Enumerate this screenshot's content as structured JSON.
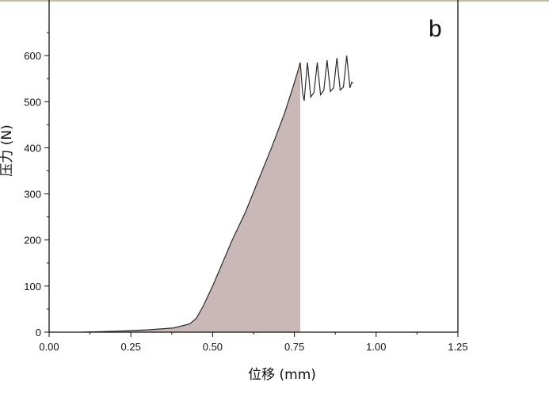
{
  "chart_data": {
    "type": "area",
    "panel_label": "b",
    "xlabel": "位移 (mm)",
    "ylabel": "压力 (N)",
    "xlim": [
      0,
      1.25
    ],
    "ylim": [
      0,
      700
    ],
    "x_ticks": [
      "0.00",
      "0.25",
      "0.50",
      "0.75",
      "1.00",
      "1.25"
    ],
    "y_ticks": [
      "0",
      "100",
      "200",
      "300",
      "400",
      "500",
      "600"
    ],
    "grid": false,
    "colors": {
      "line": "#2a2a2a",
      "fill": "#c9b8b7",
      "axis": "#111111",
      "top_rule": "#8a7a3a"
    },
    "series": [
      {
        "x": [
          0.1,
          0.2,
          0.3,
          0.38,
          0.43,
          0.45,
          0.47,
          0.5,
          0.53,
          0.56,
          0.6,
          0.64,
          0.68,
          0.72,
          0.745,
          0.76,
          0.768,
          0.775,
          0.78,
          0.785,
          0.79,
          0.8,
          0.81,
          0.82,
          0.83,
          0.84,
          0.85,
          0.86,
          0.87,
          0.88,
          0.89,
          0.9,
          0.91,
          0.92,
          0.925,
          0.93
        ],
        "y": [
          0,
          2,
          5,
          9,
          18,
          30,
          55,
          100,
          150,
          200,
          260,
          330,
          400,
          475,
          530,
          565,
          585,
          520,
          502,
          545,
          585,
          510,
          520,
          585,
          515,
          525,
          590,
          522,
          530,
          595,
          525,
          532,
          600,
          530,
          542,
          540
        ]
      }
    ],
    "shaded_region": {
      "x_from": 0.1,
      "x_to": 0.768
    }
  }
}
